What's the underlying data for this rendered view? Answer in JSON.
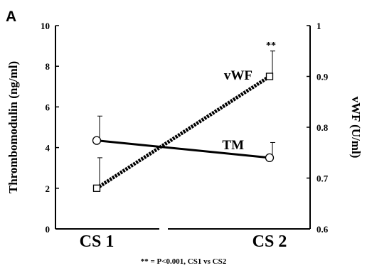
{
  "chart_data": {
    "type": "line",
    "panel_label": "A",
    "categories": [
      "CS 1",
      "CS 2"
    ],
    "y_left": {
      "label": "Thrombomodulin  (ng/ml)",
      "range": [
        0,
        10
      ],
      "ticks": [
        "0",
        "2",
        "4",
        "6",
        "8",
        "10"
      ]
    },
    "y_right": {
      "label": "vWF  (U/ml)",
      "range": [
        0.6,
        1.0
      ],
      "ticks": [
        "0.6",
        "0.7",
        "0.8",
        "0.9",
        "1"
      ]
    },
    "series": [
      {
        "name": "TM",
        "axis": "left",
        "marker": "circle",
        "style": "solid",
        "values": [
          4.35,
          3.5
        ],
        "error_upper": [
          5.55,
          4.25
        ]
      },
      {
        "name": "vWF",
        "axis": "right",
        "marker": "square",
        "style": "dashed-thick",
        "values": [
          0.68,
          0.9
        ],
        "error_upper": [
          0.74,
          0.95
        ]
      }
    ],
    "annotations": [
      {
        "text": "**",
        "series": "vWF",
        "category": "CS 2"
      }
    ],
    "footnote": "** = P<0.001,  CS1  vs  CS2",
    "colors": {
      "line": "#000000",
      "background": "#ffffff"
    }
  }
}
